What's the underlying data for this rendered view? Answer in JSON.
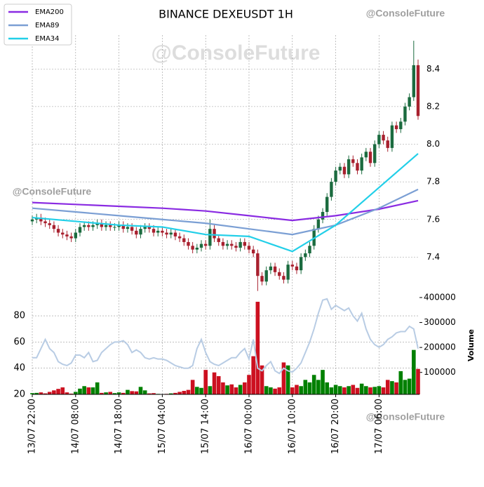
{
  "chart_data": [
    {
      "type": "candlestick",
      "title": "BINANCE DEXEUSDT 1H",
      "watermark": "@ConsoleFuture",
      "open": [
        7.59,
        7.6,
        7.61,
        7.59,
        7.58,
        7.57,
        7.55,
        7.53,
        7.52,
        7.51,
        7.5,
        7.53,
        7.56,
        7.57,
        7.56,
        7.57,
        7.58,
        7.56,
        7.57,
        7.56,
        7.56,
        7.57,
        7.55,
        7.56,
        7.54,
        7.52,
        7.55,
        7.56,
        7.55,
        7.53,
        7.54,
        7.53,
        7.52,
        7.53,
        7.51,
        7.5,
        7.48,
        7.46,
        7.44,
        7.45,
        7.47,
        7.46,
        7.55,
        7.5,
        7.48,
        7.46,
        7.47,
        7.46,
        7.45,
        7.48,
        7.46,
        7.44,
        7.42,
        7.3,
        7.27,
        7.33,
        7.35,
        7.32,
        7.3,
        7.28,
        7.36,
        7.35,
        7.33,
        7.4,
        7.42,
        7.46,
        7.55,
        7.6,
        7.64,
        7.72,
        7.8,
        7.86,
        7.88,
        7.84,
        7.92,
        7.9,
        7.86,
        7.93,
        7.96,
        7.9,
        8.0,
        8.05,
        8.02,
        7.98,
        8.1,
        8.08,
        8.12,
        8.2,
        8.25,
        8.42
      ],
      "high": [
        7.62,
        7.63,
        7.63,
        7.61,
        7.6,
        7.59,
        7.57,
        7.55,
        7.54,
        7.53,
        7.55,
        7.58,
        7.59,
        7.59,
        7.59,
        7.6,
        7.6,
        7.59,
        7.59,
        7.58,
        7.59,
        7.59,
        7.58,
        7.58,
        7.56,
        7.57,
        7.58,
        7.58,
        7.57,
        7.56,
        7.56,
        7.55,
        7.55,
        7.55,
        7.53,
        7.52,
        7.5,
        7.48,
        7.47,
        7.49,
        7.49,
        7.6,
        7.57,
        7.52,
        7.5,
        7.49,
        7.49,
        7.48,
        7.5,
        7.5,
        7.48,
        7.46,
        7.44,
        7.32,
        7.35,
        7.37,
        7.37,
        7.34,
        7.32,
        7.38,
        7.38,
        7.37,
        7.42,
        7.44,
        7.48,
        7.57,
        7.62,
        7.66,
        7.74,
        7.82,
        7.88,
        7.9,
        7.9,
        7.94,
        7.94,
        7.92,
        7.95,
        7.98,
        7.98,
        8.02,
        8.07,
        8.07,
        8.04,
        8.12,
        8.12,
        8.14,
        8.22,
        8.27,
        8.55,
        8.45
      ],
      "low": [
        7.57,
        7.58,
        7.57,
        7.56,
        7.55,
        7.53,
        7.51,
        7.5,
        7.49,
        7.48,
        7.48,
        7.51,
        7.54,
        7.54,
        7.54,
        7.55,
        7.54,
        7.54,
        7.54,
        7.54,
        7.54,
        7.53,
        7.53,
        7.52,
        7.5,
        7.5,
        7.53,
        7.53,
        7.51,
        7.51,
        7.51,
        7.5,
        7.5,
        7.49,
        7.48,
        7.46,
        7.44,
        7.42,
        7.42,
        7.43,
        7.44,
        7.44,
        7.48,
        7.46,
        7.44,
        7.44,
        7.44,
        7.43,
        7.43,
        7.44,
        7.42,
        7.4,
        7.22,
        7.25,
        7.25,
        7.31,
        7.3,
        7.28,
        7.26,
        7.26,
        7.33,
        7.31,
        7.31,
        7.38,
        7.4,
        7.44,
        7.53,
        7.58,
        7.62,
        7.7,
        7.78,
        7.84,
        7.82,
        7.82,
        7.88,
        7.84,
        7.84,
        7.91,
        7.88,
        7.88,
        7.98,
        8.0,
        7.96,
        7.96,
        8.06,
        8.06,
        8.1,
        8.18,
        8.23,
        8.13
      ],
      "close": [
        7.6,
        7.61,
        7.59,
        7.58,
        7.57,
        7.55,
        7.53,
        7.52,
        7.51,
        7.5,
        7.53,
        7.56,
        7.57,
        7.56,
        7.57,
        7.58,
        7.56,
        7.57,
        7.56,
        7.56,
        7.57,
        7.55,
        7.56,
        7.54,
        7.52,
        7.55,
        7.56,
        7.55,
        7.53,
        7.54,
        7.53,
        7.52,
        7.53,
        7.51,
        7.5,
        7.48,
        7.46,
        7.44,
        7.45,
        7.47,
        7.46,
        7.55,
        7.5,
        7.48,
        7.46,
        7.47,
        7.46,
        7.45,
        7.48,
        7.46,
        7.44,
        7.42,
        7.3,
        7.27,
        7.33,
        7.35,
        7.32,
        7.3,
        7.28,
        7.36,
        7.35,
        7.33,
        7.4,
        7.42,
        7.46,
        7.55,
        7.6,
        7.64,
        7.72,
        7.8,
        7.86,
        7.88,
        7.84,
        7.92,
        7.9,
        7.86,
        7.93,
        7.96,
        7.9,
        8.0,
        8.05,
        8.02,
        7.98,
        8.1,
        8.08,
        8.12,
        8.2,
        8.25,
        8.42,
        8.15
      ],
      "up_color": "#1b6b3f",
      "down_color": "#a8202e",
      "series": [
        {
          "name": "EMA200",
          "color": "#8a2be2",
          "x": [
            0,
            10,
            20,
            30,
            40,
            50,
            60,
            70,
            80,
            89
          ],
          "values": [
            7.69,
            7.68,
            7.67,
            7.66,
            7.645,
            7.62,
            7.595,
            7.62,
            7.655,
            7.7
          ]
        },
        {
          "name": "EMA89",
          "color": "#7b9fd4",
          "x": [
            0,
            10,
            20,
            30,
            40,
            50,
            60,
            70,
            80,
            89
          ],
          "values": [
            7.66,
            7.64,
            7.62,
            7.6,
            7.58,
            7.55,
            7.52,
            7.57,
            7.66,
            7.76
          ]
        },
        {
          "name": "EMA34",
          "color": "#22cfe8",
          "x": [
            0,
            10,
            20,
            30,
            40,
            50,
            60,
            70,
            80,
            89
          ],
          "values": [
            7.61,
            7.59,
            7.57,
            7.56,
            7.52,
            7.51,
            7.43,
            7.57,
            7.77,
            7.95
          ]
        }
      ],
      "ylim": [
        7.2,
        8.58
      ],
      "yticks": [
        7.4,
        7.6,
        7.8,
        {
          "value": 8,
          "label": "8.0"
        },
        8.2,
        8.4
      ],
      "grid": true,
      "legend": "top-left"
    },
    {
      "type": "volume-rsi",
      "categories": [
        "13/07 22:00",
        null,
        null,
        null,
        null,
        null,
        null,
        null,
        null,
        null,
        "14/07 08:00",
        null,
        null,
        null,
        null,
        null,
        null,
        null,
        null,
        null,
        "14/07 18:00",
        null,
        null,
        null,
        null,
        null,
        null,
        null,
        null,
        null,
        "15/07 04:00",
        null,
        null,
        null,
        null,
        null,
        null,
        null,
        null,
        null,
        "15/07 14:00",
        null,
        null,
        null,
        null,
        null,
        null,
        null,
        null,
        null,
        "16/07 00:00",
        null,
        null,
        null,
        null,
        null,
        null,
        null,
        null,
        null,
        "16/07 10:00",
        null,
        null,
        null,
        null,
        null,
        null,
        null,
        null,
        null,
        "16/07 20:00",
        null,
        null,
        null,
        null,
        null,
        null,
        null,
        null,
        null,
        "17/07 06:00",
        null,
        null,
        null,
        null,
        null,
        null,
        null,
        null,
        null
      ],
      "volume": [
        17000,
        18000,
        20000,
        16000,
        22000,
        28000,
        34000,
        40000,
        20000,
        15000,
        22000,
        35000,
        45000,
        40000,
        40000,
        60000,
        18000,
        20000,
        22000,
        17000,
        20000,
        18000,
        30000,
        25000,
        24000,
        42000,
        28000,
        16000,
        17000,
        14000,
        13000,
        14000,
        16000,
        18000,
        22000,
        26000,
        30000,
        70000,
        42000,
        38000,
        110000,
        45000,
        100000,
        85000,
        60000,
        48000,
        52000,
        40000,
        50000,
        60000,
        90000,
        165000,
        383000,
        128000,
        45000,
        40000,
        35000,
        40000,
        140000,
        128000,
        40000,
        50000,
        45000,
        70000,
        60000,
        90000,
        70000,
        110000,
        60000,
        40000,
        50000,
        45000,
        40000,
        45000,
        50000,
        38000,
        55000,
        45000,
        40000,
        42000,
        45000,
        40000,
        70000,
        65000,
        60000,
        105000,
        70000,
        75000,
        190000,
        114000
      ],
      "rsi": [
        48,
        48,
        55,
        62,
        55,
        52,
        45,
        43,
        42,
        44,
        50,
        50,
        48,
        52,
        45,
        46,
        52,
        55,
        58,
        60,
        60,
        61,
        58,
        52,
        54,
        52,
        48,
        47,
        48,
        47,
        47,
        46,
        44,
        42,
        41,
        40,
        40,
        42,
        55,
        62,
        52,
        45,
        43,
        42,
        44,
        46,
        48,
        48,
        52,
        55,
        47,
        62,
        40,
        38,
        42,
        45,
        38,
        36,
        40,
        38,
        37,
        40,
        44,
        52,
        60,
        70,
        82,
        92,
        93,
        85,
        88,
        86,
        84,
        86,
        80,
        76,
        82,
        70,
        62,
        58,
        56,
        58,
        62,
        64,
        67,
        68,
        68,
        72,
        70,
        55
      ],
      "up_color": "#008000",
      "down_color": "#cc1020",
      "rsi_color": "#b8cce4",
      "ylim": [
        20,
        94
      ],
      "yticks": [
        20,
        40,
        60,
        80
      ],
      "y2label": "Volume",
      "y2lim": [
        12000,
        400000
      ],
      "y2ticks": [
        100000,
        200000,
        300000,
        400000
      ],
      "grid": true
    }
  ]
}
